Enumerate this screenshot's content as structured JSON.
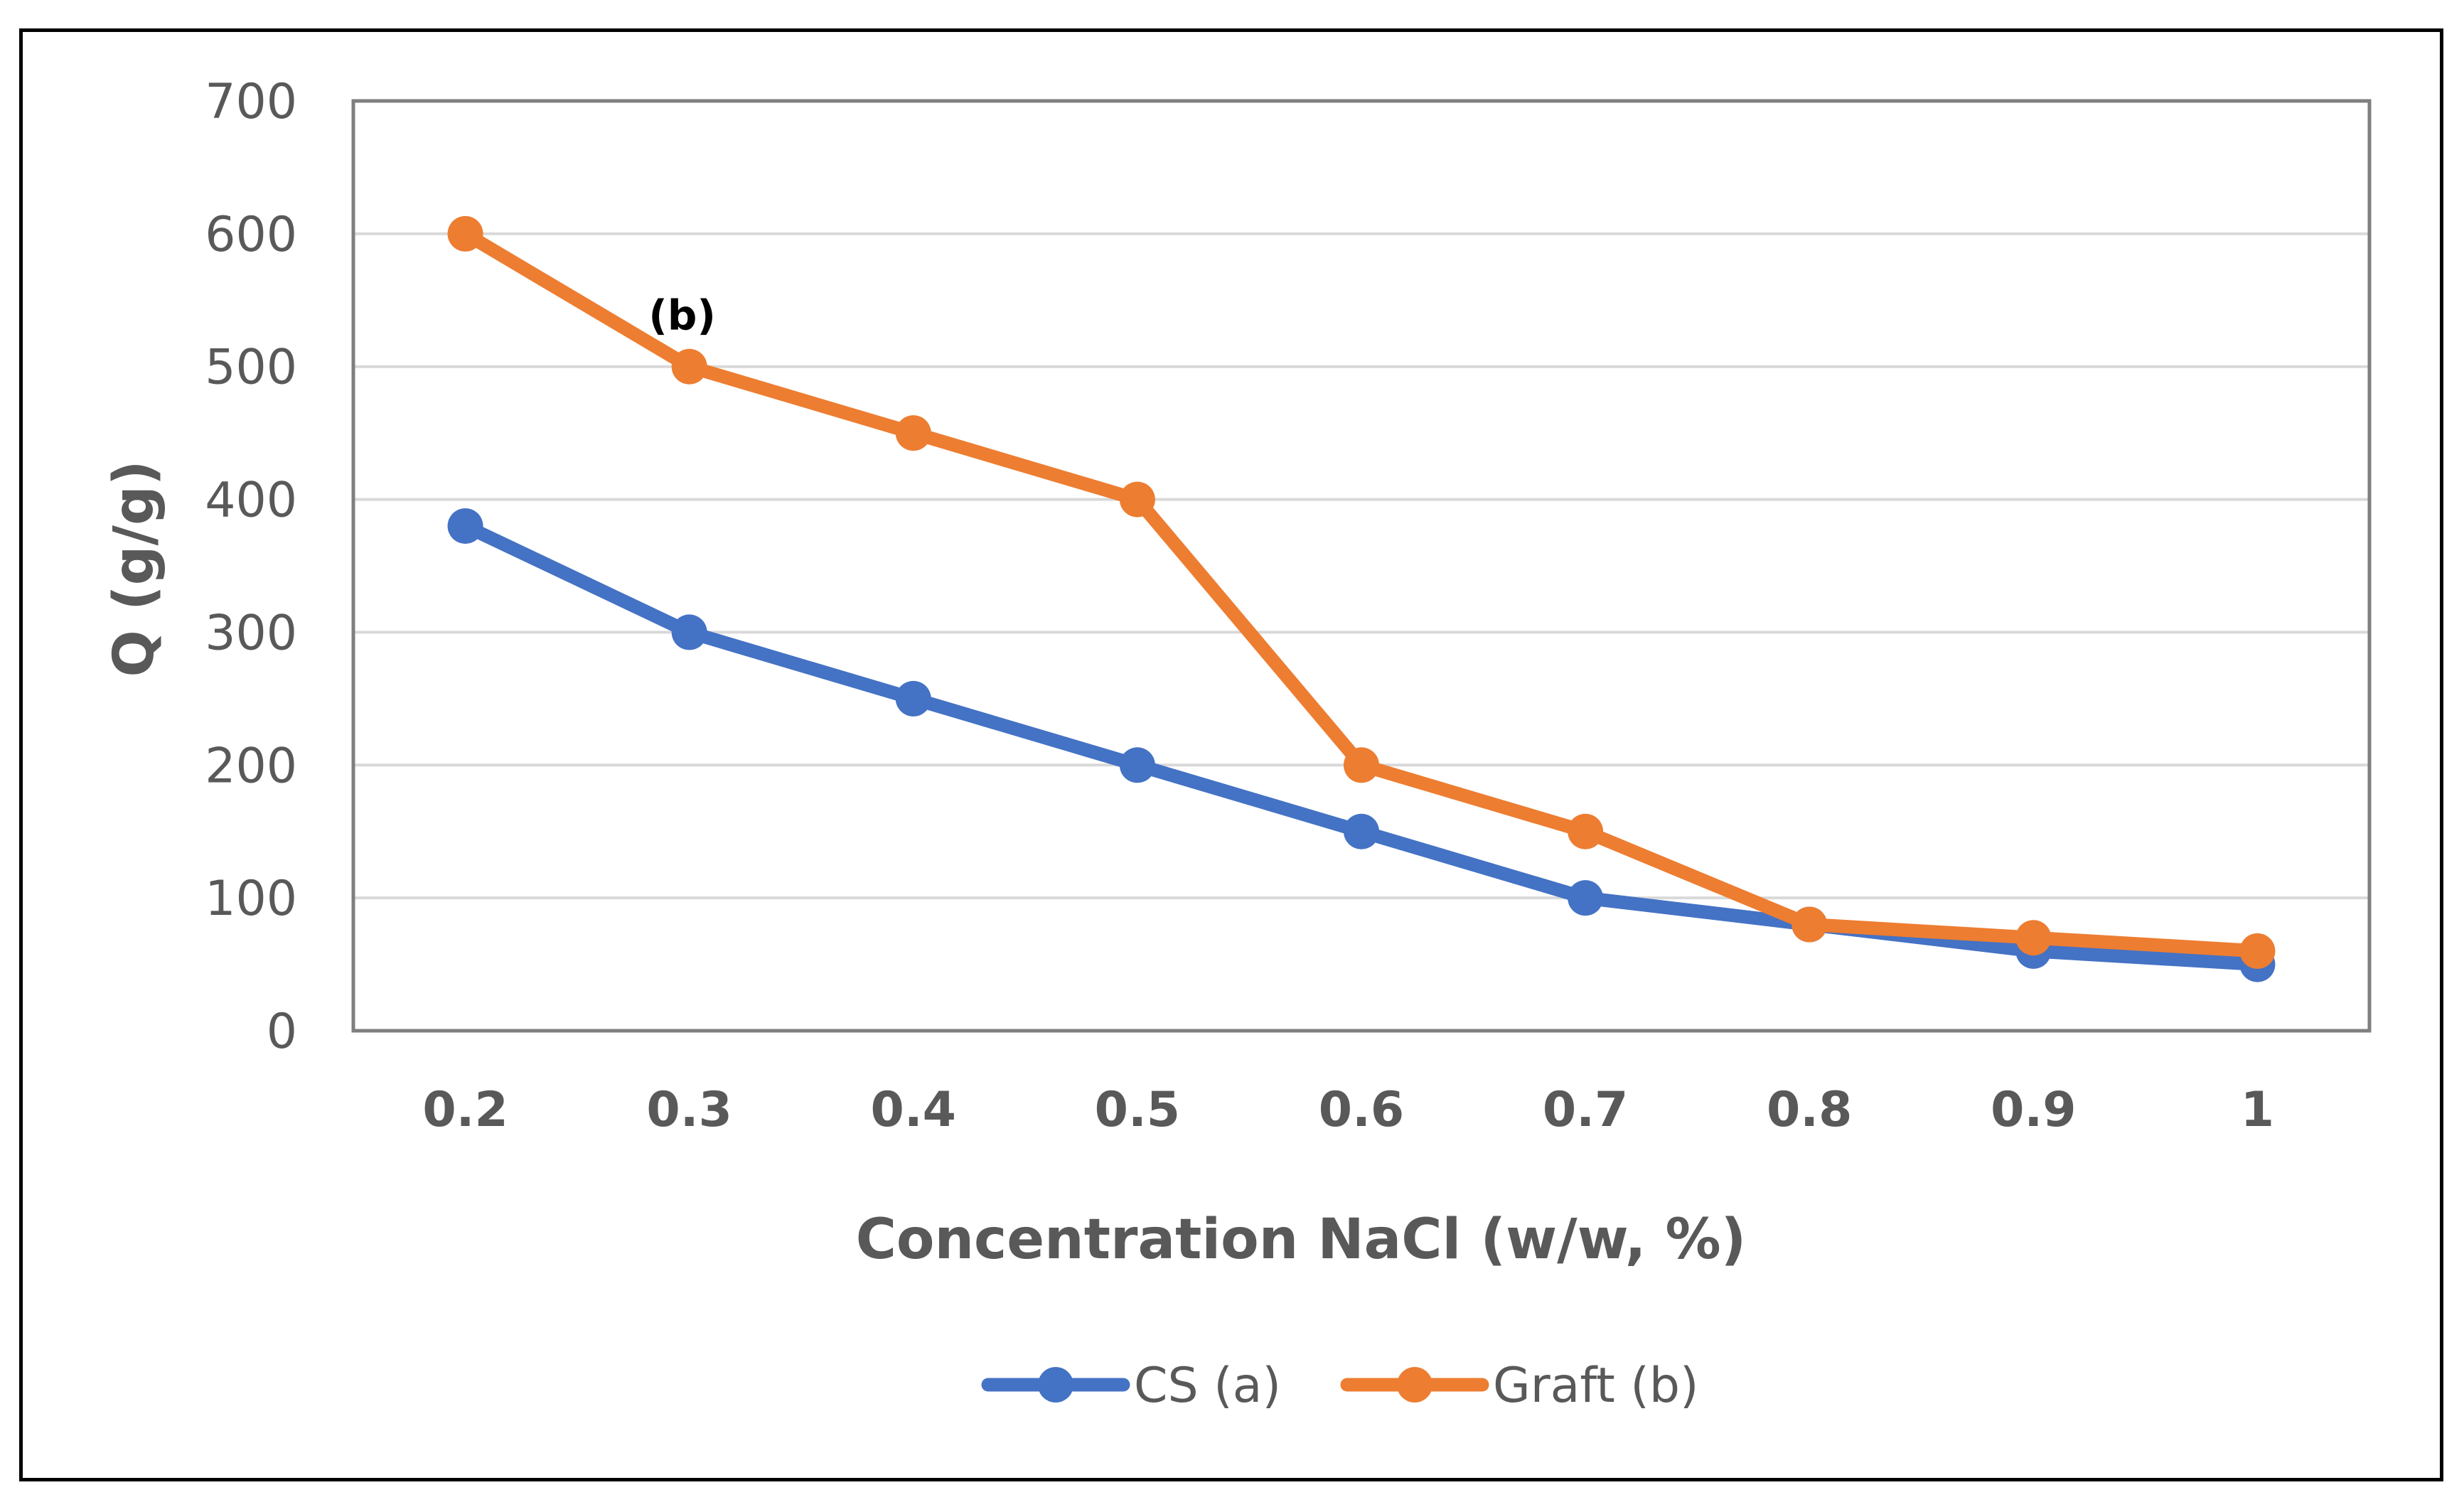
{
  "chart_data": {
    "type": "line",
    "title": "",
    "xlabel": "Concentration NaCl (w/w, %)",
    "ylabel": "Q (g/g)",
    "categories": [
      "0.2",
      "0.3",
      "0.4",
      "0.5",
      "0.6",
      "0.7",
      "0.8",
      "0.9",
      "1"
    ],
    "yticks": [
      "0",
      "100",
      "200",
      "300",
      "400",
      "500",
      "600",
      "700"
    ],
    "ylim": [
      0,
      700
    ],
    "grid": true,
    "legend_position": "bottom",
    "series": [
      {
        "name": "CS (a)",
        "color": "#4472C4",
        "values": [
          380,
          300,
          250,
          200,
          150,
          100,
          80,
          60,
          50
        ]
      },
      {
        "name": "Graft (b)",
        "color": "#ED7D31",
        "values": [
          600,
          500,
          450,
          400,
          200,
          150,
          80,
          70,
          60
        ]
      }
    ],
    "annotations": [
      {
        "text": "(b)",
        "category": "0.3",
        "value": 500
      }
    ]
  }
}
